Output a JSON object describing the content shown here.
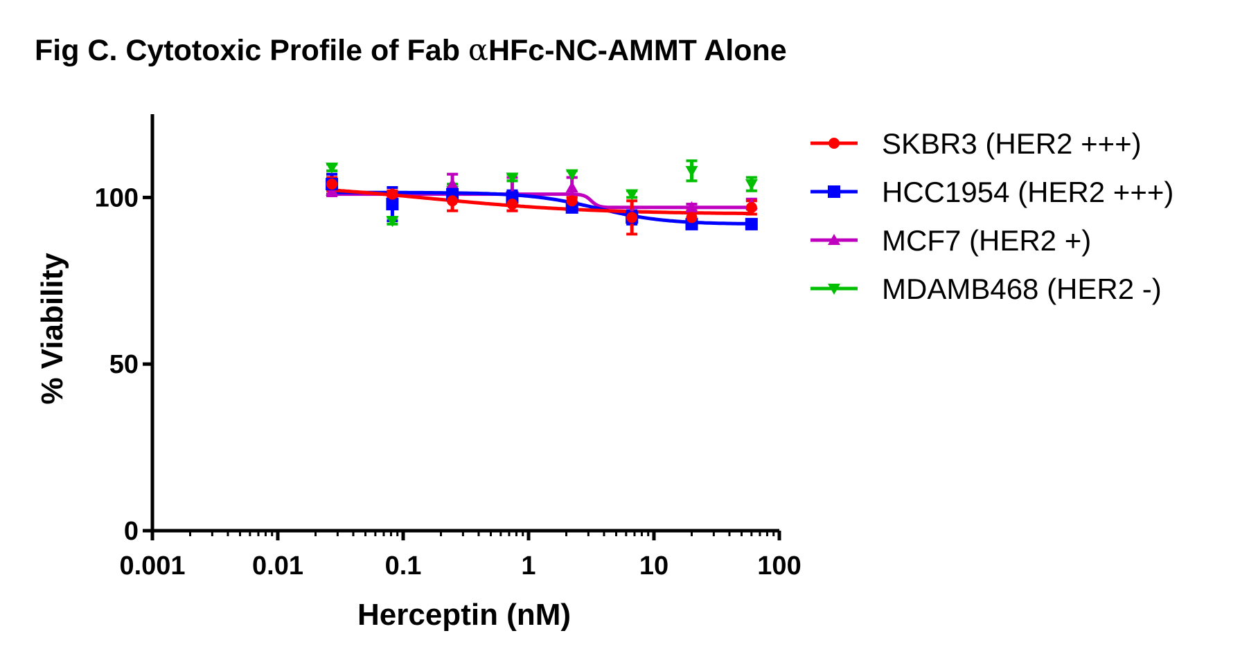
{
  "title": {
    "prefix": "Fig C. Cytotoxic Profile of Fab ",
    "alpha": "α",
    "suffix": "HFc-NC-AMMT Alone"
  },
  "chart_data": {
    "type": "scatter",
    "title": "Fig C. Cytotoxic Profile of Fab αHFc-NC-AMMT Alone",
    "xlabel": "Herceptin (nM)",
    "ylabel": "% Viability",
    "xscale": "log",
    "xlim": [
      0.001,
      100
    ],
    "ylim": [
      0,
      125
    ],
    "x_ticks": [
      0.001,
      0.01,
      0.1,
      1,
      10,
      100
    ],
    "x_tick_labels": [
      "0.001",
      "0.01",
      "0.1",
      "1",
      "10",
      "100"
    ],
    "y_ticks": [
      0,
      50,
      100
    ],
    "y_tick_labels": [
      "0",
      "50",
      "100"
    ],
    "legend_position": "right",
    "x": [
      0.027,
      0.082,
      0.247,
      0.741,
      2.22,
      6.67,
      20,
      60
    ],
    "series": [
      {
        "name": "SKBR3 (HER2 +++)",
        "color": "#ff0000",
        "marker": "circle",
        "values": [
          104,
          101,
          99,
          98,
          99,
          94,
          94,
          97
        ],
        "errors": [
          2,
          1,
          3,
          2,
          1,
          5,
          2,
          2
        ],
        "fit": {
          "type": "sigmoid",
          "top": 104.5,
          "bottom": 95,
          "logEC50": -0.8,
          "hill": 0.65
        }
      },
      {
        "name": "HCC1954 (HER2 +++)",
        "color": "#0000ff",
        "marker": "square",
        "values": [
          104,
          98,
          101,
          100,
          97,
          94,
          92,
          92
        ],
        "errors": [
          3,
          5,
          1,
          2,
          1,
          2,
          1,
          0.5
        ],
        "fit": {
          "type": "sigmoid",
          "top": 101.5,
          "bottom": 92,
          "logEC50": 0.55,
          "hill": 1.6
        }
      },
      {
        "name": "MCF7 (HER2 +)",
        "color": "#bf00bf",
        "marker": "triangle-up",
        "values": [
          102,
          101,
          104,
          101,
          103,
          95,
          97,
          98
        ],
        "errors": [
          1.5,
          1,
          3,
          5,
          3,
          2,
          1,
          1.5
        ],
        "fit": {
          "type": "sigmoid",
          "top": 101,
          "bottom": 97,
          "logEC50": 0.5,
          "hill": 15
        }
      },
      {
        "name": "MDAMB468 (HER2 -)",
        "color": "#00bf00",
        "marker": "triangle-down",
        "values": [
          109,
          93,
          102,
          106,
          107,
          101,
          108,
          104
        ],
        "errors": [
          1,
          1,
          2,
          1,
          1,
          1,
          3,
          2
        ],
        "fit": null
      }
    ]
  }
}
